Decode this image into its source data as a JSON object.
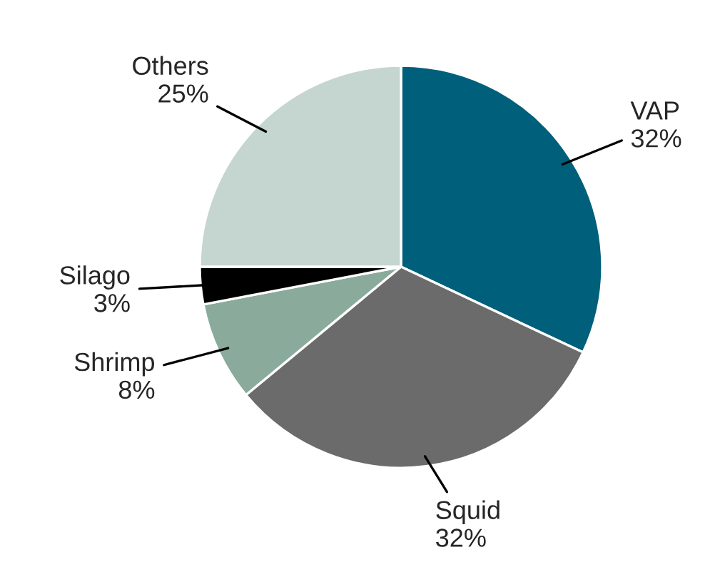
{
  "chart_data": {
    "type": "pie",
    "categories": [
      "VAP",
      "Squid",
      "Shrimp",
      "Silago",
      "Others"
    ],
    "values": [
      32,
      32,
      8,
      3,
      25
    ],
    "value_labels": [
      "32%",
      "32%",
      "8%",
      "3%",
      "25%"
    ],
    "colors": [
      "#005f7a",
      "#6b6b6b",
      "#8aab9b",
      "#000000",
      "#c5d5d0"
    ],
    "legend": false
  }
}
